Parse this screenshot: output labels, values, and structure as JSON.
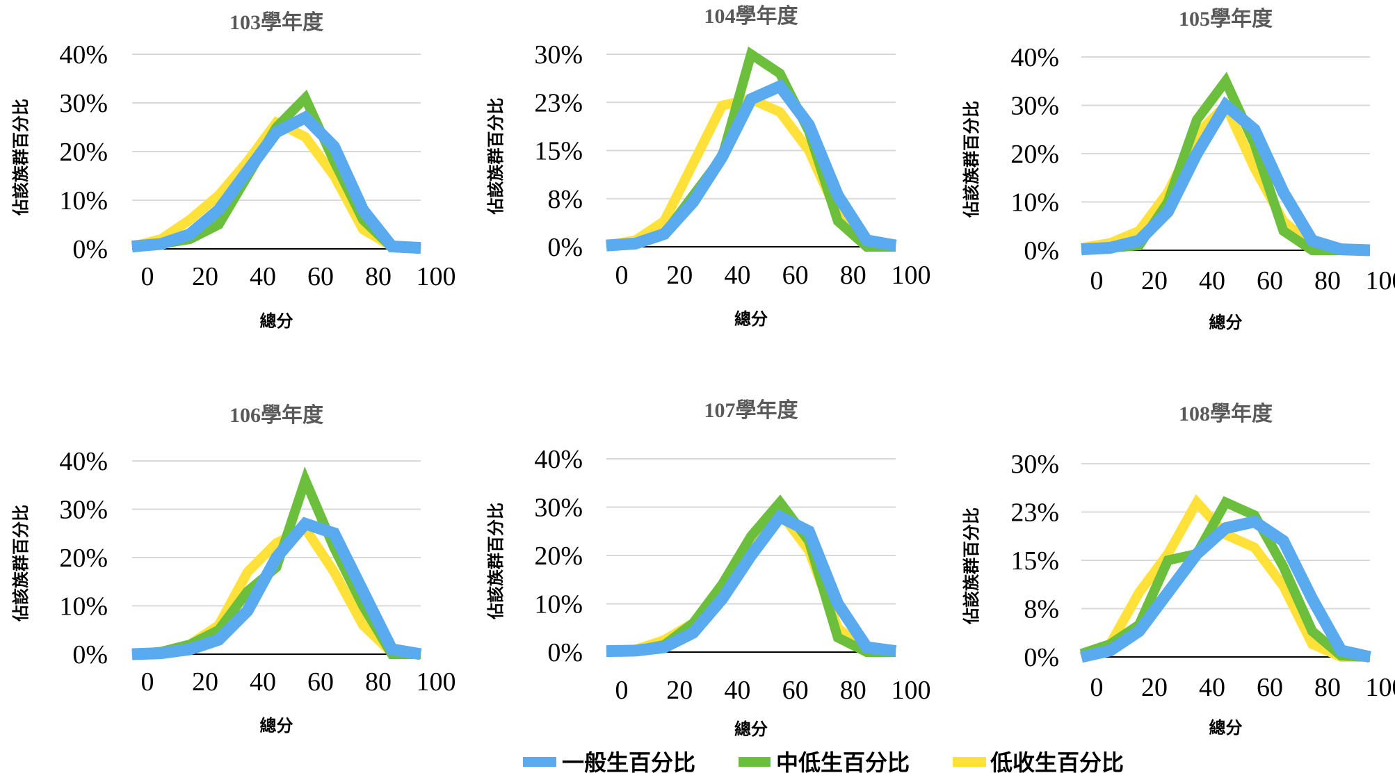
{
  "colors": {
    "general": "#5AAAF0",
    "mid_low": "#6BBF3C",
    "low": "#FFE13A",
    "grid": "#D9D9D9",
    "baseline": "#000000"
  },
  "legend": [
    {
      "key": "general",
      "label": "一般生百分比"
    },
    {
      "key": "mid_low",
      "label": "中低生百分比"
    },
    {
      "key": "low",
      "label": "低收生百分比"
    }
  ],
  "chart_data": [
    {
      "type": "line",
      "title": "103學年度",
      "xlabel": "總分",
      "ylabel": "佔該族群百分比",
      "x_ticks": [
        "0",
        "20",
        "40",
        "60",
        "80",
        "100"
      ],
      "y_ticks": [
        "0%",
        "10%",
        "20%",
        "30%",
        "40%"
      ],
      "xlim": [
        0,
        100
      ],
      "ylim": [
        0,
        40
      ],
      "x": [
        0,
        10,
        20,
        30,
        40,
        50,
        60,
        70,
        80,
        90,
        100
      ],
      "series": [
        {
          "name": "一般生百分比",
          "color_key": "general",
          "values": [
            0.5,
            1,
            3,
            8,
            16,
            24,
            27,
            21,
            8,
            0.5,
            0.2
          ]
        },
        {
          "name": "中低生百分比",
          "color_key": "mid_low",
          "values": [
            0.5,
            1,
            2,
            5,
            15,
            25,
            31,
            18,
            6,
            0.3,
            0
          ]
        },
        {
          "name": "低收生百分比",
          "color_key": "low",
          "values": [
            0.5,
            2,
            6,
            11,
            18,
            26,
            23,
            15,
            4,
            0.5,
            0
          ]
        }
      ]
    },
    {
      "type": "line",
      "title": "104學年度",
      "xlabel": "總分",
      "ylabel": "佔該族群百分比",
      "x_ticks": [
        "0",
        "20",
        "40",
        "60",
        "80",
        "100"
      ],
      "y_ticks": [
        "0%",
        "8%",
        "15%",
        "23%",
        "30%"
      ],
      "xlim": [
        0,
        100
      ],
      "ylim": [
        0,
        30
      ],
      "x": [
        0,
        10,
        20,
        30,
        40,
        50,
        60,
        70,
        80,
        90,
        100
      ],
      "series": [
        {
          "name": "一般生百分比",
          "color_key": "general",
          "values": [
            0.2,
            0.5,
            2,
            7,
            14,
            23,
            25,
            19,
            8,
            1,
            0.2
          ]
        },
        {
          "name": "中低生百分比",
          "color_key": "mid_low",
          "values": [
            0.2,
            0.5,
            2,
            8,
            14,
            30,
            27,
            18,
            4,
            0,
            0
          ]
        },
        {
          "name": "低收生百分比",
          "color_key": "low",
          "values": [
            0.2,
            1,
            4,
            13,
            22,
            23,
            21,
            15,
            5,
            0.5,
            0
          ]
        }
      ]
    },
    {
      "type": "line",
      "title": "105學年度",
      "xlabel": "總分",
      "ylabel": "佔該族群百分比",
      "x_ticks": [
        "0",
        "20",
        "40",
        "60",
        "80",
        "100"
      ],
      "y_ticks": [
        "0%",
        "10%",
        "20%",
        "30%",
        "40%"
      ],
      "xlim": [
        0,
        100
      ],
      "ylim": [
        0,
        40
      ],
      "x": [
        0,
        10,
        20,
        30,
        40,
        50,
        60,
        70,
        80,
        90,
        100
      ],
      "series": [
        {
          "name": "一般生百分比",
          "color_key": "general",
          "values": [
            0.2,
            0.5,
            2,
            8,
            20,
            30,
            25,
            12,
            2,
            0.2,
            0
          ]
        },
        {
          "name": "中低生百分比",
          "color_key": "mid_low",
          "values": [
            0.2,
            0.5,
            1,
            10,
            27,
            35,
            22,
            4,
            0,
            0,
            0
          ]
        },
        {
          "name": "低收生百分比",
          "color_key": "low",
          "values": [
            0.5,
            1.5,
            4,
            12,
            24,
            30,
            17,
            6,
            1,
            0,
            0
          ]
        }
      ]
    },
    {
      "type": "line",
      "title": "106學年度",
      "xlabel": "總分",
      "ylabel": "佔該族群百分比",
      "x_ticks": [
        "0",
        "20",
        "40",
        "60",
        "80",
        "100"
      ],
      "y_ticks": [
        "0%",
        "10%",
        "20%",
        "30%",
        "40%"
      ],
      "xlim": [
        0,
        100
      ],
      "ylim": [
        0,
        40
      ],
      "x": [
        0,
        10,
        20,
        30,
        40,
        50,
        60,
        70,
        80,
        90,
        100
      ],
      "series": [
        {
          "name": "一般生百分比",
          "color_key": "general",
          "values": [
            0,
            0.2,
            1,
            3,
            9,
            20,
            27,
            25,
            13,
            1,
            0
          ]
        },
        {
          "name": "中低生百分比",
          "color_key": "mid_low",
          "values": [
            0,
            0.5,
            2,
            5,
            13,
            18,
            36,
            22,
            10,
            0,
            0
          ]
        },
        {
          "name": "低收生百分比",
          "color_key": "low",
          "values": [
            0,
            0.5,
            2,
            6,
            17,
            23,
            26,
            17,
            6,
            0.3,
            0
          ]
        }
      ]
    },
    {
      "type": "line",
      "title": "107學年度",
      "xlabel": "總分",
      "ylabel": "佔該族群百分比",
      "x_ticks": [
        "0",
        "20",
        "40",
        "60",
        "80",
        "100"
      ],
      "y_ticks": [
        "0%",
        "10%",
        "20%",
        "30%",
        "40%"
      ],
      "xlim": [
        0,
        100
      ],
      "ylim": [
        0,
        40
      ],
      "x": [
        0,
        10,
        20,
        30,
        40,
        50,
        60,
        70,
        80,
        90,
        100
      ],
      "series": [
        {
          "name": "一般生百分比",
          "color_key": "general",
          "values": [
            0.2,
            0.3,
            1,
            4,
            11,
            20,
            28,
            25,
            10,
            1,
            0.2
          ]
        },
        {
          "name": "中低生百分比",
          "color_key": "mid_low",
          "values": [
            0.2,
            0.3,
            1.5,
            6,
            14,
            24,
            31,
            23,
            3,
            0,
            0
          ]
        },
        {
          "name": "低收生百分比",
          "color_key": "low",
          "values": [
            0.2,
            0.5,
            2.5,
            6,
            12,
            22,
            29,
            21,
            5,
            0,
            0
          ]
        }
      ]
    },
    {
      "type": "line",
      "title": "108學年度",
      "xlabel": "總分",
      "ylabel": "佔該族群百分比",
      "x_ticks": [
        "0",
        "20",
        "40",
        "60",
        "80",
        "100"
      ],
      "y_ticks": [
        "0%",
        "8%",
        "15%",
        "23%",
        "30%"
      ],
      "xlim": [
        0,
        100
      ],
      "ylim": [
        0,
        30
      ],
      "x": [
        0,
        10,
        20,
        30,
        40,
        50,
        60,
        70,
        80,
        90,
        100
      ],
      "series": [
        {
          "name": "一般生百分比",
          "color_key": "general",
          "values": [
            0,
            1,
            4,
            10,
            16,
            20,
            21,
            18,
            9,
            1,
            0
          ]
        },
        {
          "name": "中低生百分比",
          "color_key": "mid_low",
          "values": [
            0.5,
            2,
            5,
            15,
            16,
            24,
            22,
            14,
            4,
            0.2,
            0
          ]
        },
        {
          "name": "低收生百分比",
          "color_key": "low",
          "values": [
            0,
            2,
            10,
            16,
            24,
            19,
            17,
            11,
            2,
            0,
            0
          ]
        }
      ]
    }
  ]
}
